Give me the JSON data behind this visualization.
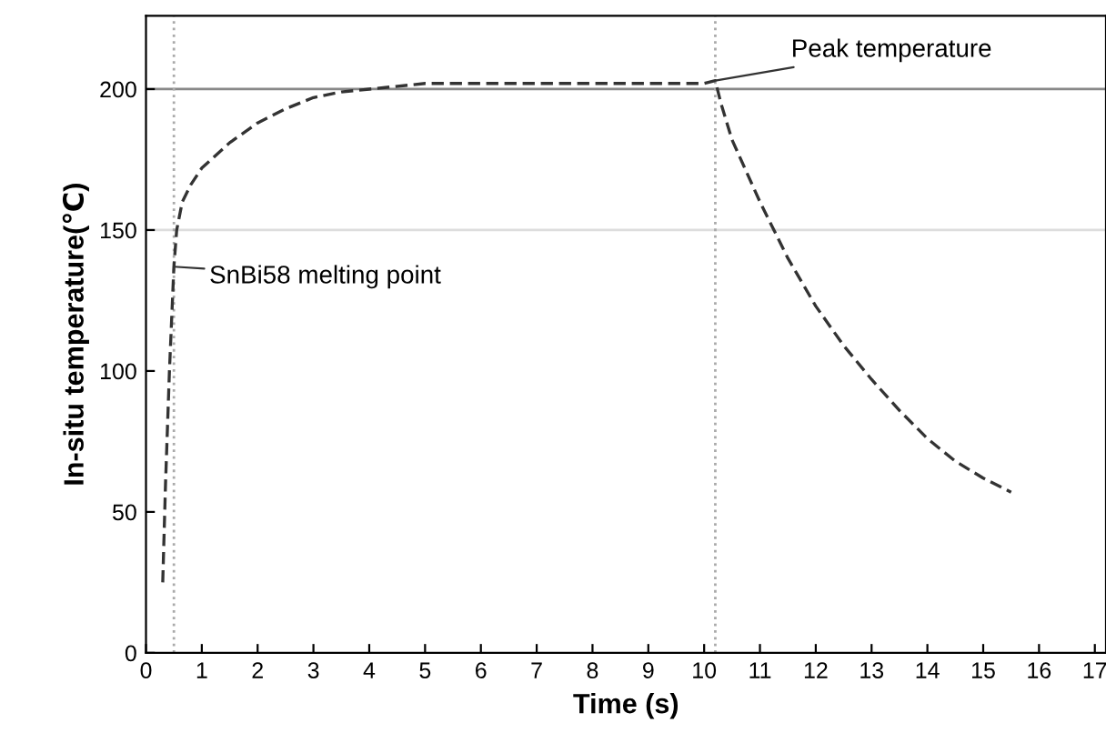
{
  "chart_data": {
    "type": "line",
    "xlabel": "Time (s)",
    "ylabel": "In-situ temperature(℃)",
    "x": [
      0.3,
      0.35,
      0.42,
      0.5,
      0.55,
      0.65,
      0.8,
      1.0,
      1.5,
      2.0,
      2.5,
      3.0,
      3.5,
      4.0,
      5.0,
      6.0,
      7.0,
      8.0,
      9.0,
      10.0,
      10.2,
      10.3,
      10.5,
      11.0,
      11.5,
      12.0,
      12.5,
      13.0,
      13.5,
      14.0,
      14.5,
      15.0,
      15.5
    ],
    "series": [
      {
        "color": "#333333",
        "values": [
          25,
          60,
          100,
          137,
          150,
          160,
          166,
          172,
          181,
          188,
          193,
          197,
          199,
          200,
          202,
          202,
          202,
          202,
          202,
          202,
          203,
          195,
          182,
          160,
          140,
          123,
          109,
          97,
          86,
          76,
          68,
          62,
          57
        ]
      }
    ],
    "line_style": "dashed",
    "marker": "none",
    "xlim": [
      0,
      17.2
    ],
    "ylim": [
      0,
      226
    ],
    "xticks": [
      0,
      1,
      2,
      3,
      4,
      5,
      6,
      7,
      8,
      9,
      10,
      11,
      12,
      13,
      14,
      15,
      16,
      17
    ],
    "yticks": [
      0,
      50,
      100,
      150,
      200
    ],
    "ref_lines": [
      {
        "axis": "y",
        "value": 200,
        "color": "#888888",
        "line_style": "solid"
      },
      {
        "axis": "y",
        "value": 150,
        "color": "#dddddd",
        "line_style": "solid"
      },
      {
        "axis": "x",
        "value": 0.5,
        "color": "#aaaaaa",
        "line_style": "dotted"
      },
      {
        "axis": "x",
        "value": 10.2,
        "color": "#aaaaaa",
        "line_style": "dotted"
      }
    ],
    "annotations": [
      {
        "text": "SnBi58 melting point",
        "x": 0.5,
        "y": 137
      },
      {
        "text": "Peak temperature",
        "x": 10.2,
        "y": 203
      }
    ],
    "grid": false
  }
}
